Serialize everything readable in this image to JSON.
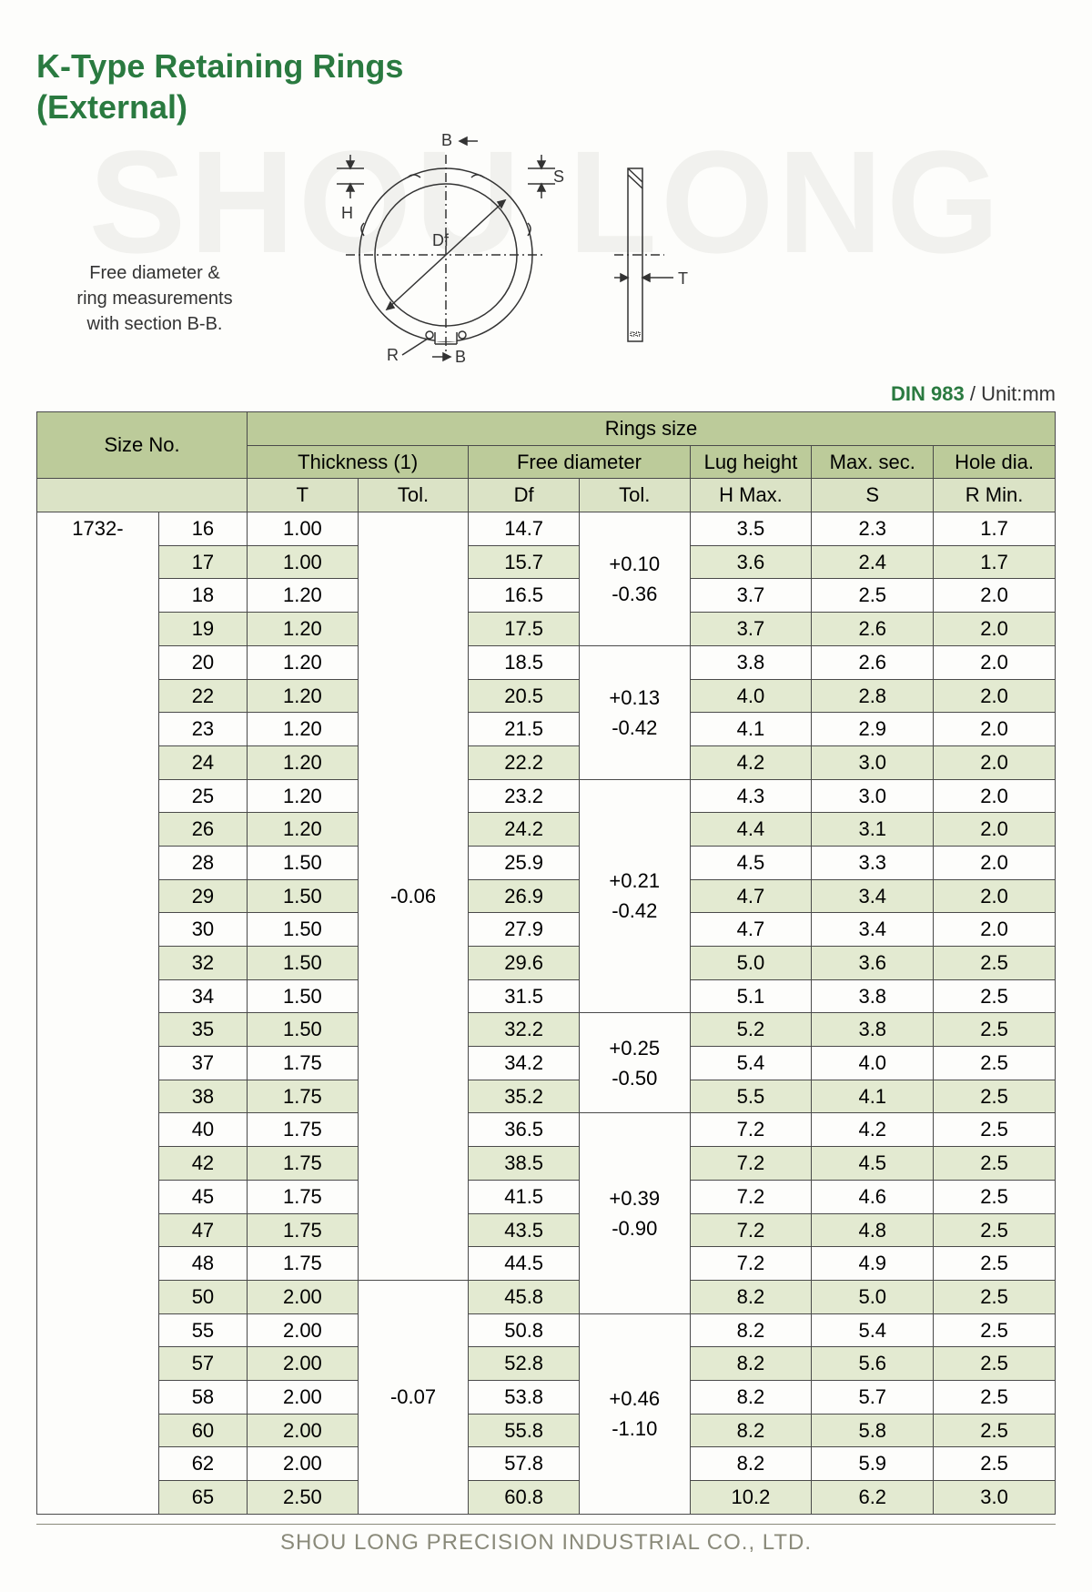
{
  "watermark": "SHOU LONG",
  "title_l1": "K-Type Retaining Rings",
  "title_l2": "(External)",
  "caption_l1": "Free diameter &",
  "caption_l2": "ring measurements",
  "caption_l3": "with section B-B.",
  "diagram_labels": {
    "B": "B",
    "S": "S",
    "H": "H",
    "Df": "Df",
    "T": "T",
    "R": "R"
  },
  "spec_standard": "DIN 983",
  "spec_unit": " / Unit:mm",
  "headers": {
    "size_no": "Size No.",
    "rings_size": "Rings size",
    "thickness": "Thickness (1)",
    "free_dia": "Free diameter",
    "lug_h": "Lug height",
    "max_sec": "Max. sec.",
    "hole_dia": "Hole dia.",
    "T": "T",
    "TolT": "Tol.",
    "Df": "Df",
    "TolD": "Tol.",
    "HMax": "H Max.",
    "S": "S",
    "RMin": "R Min."
  },
  "prefix": "1732-",
  "tol_t_1": "-0.06",
  "tol_t_2": "-0.07",
  "tol_d": [
    {
      "txt": "+0.10\n-0.36",
      "rows": 4
    },
    {
      "txt": "+0.13\n-0.42",
      "rows": 4
    },
    {
      "txt": "+0.21\n-0.42",
      "rows": 7
    },
    {
      "txt": "+0.25\n-0.50",
      "rows": 3
    },
    {
      "txt": "+0.39\n-0.90",
      "rows": 6
    },
    {
      "txt": "+0.46\n-1.10",
      "rows": 6
    }
  ],
  "rows": [
    {
      "n": "16",
      "t": "1.00",
      "df": "14.7",
      "h": "3.5",
      "s": "2.3",
      "r": "1.7"
    },
    {
      "n": "17",
      "t": "1.00",
      "df": "15.7",
      "h": "3.6",
      "s": "2.4",
      "r": "1.7"
    },
    {
      "n": "18",
      "t": "1.20",
      "df": "16.5",
      "h": "3.7",
      "s": "2.5",
      "r": "2.0"
    },
    {
      "n": "19",
      "t": "1.20",
      "df": "17.5",
      "h": "3.7",
      "s": "2.6",
      "r": "2.0"
    },
    {
      "n": "20",
      "t": "1.20",
      "df": "18.5",
      "h": "3.8",
      "s": "2.6",
      "r": "2.0"
    },
    {
      "n": "22",
      "t": "1.20",
      "df": "20.5",
      "h": "4.0",
      "s": "2.8",
      "r": "2.0"
    },
    {
      "n": "23",
      "t": "1.20",
      "df": "21.5",
      "h": "4.1",
      "s": "2.9",
      "r": "2.0"
    },
    {
      "n": "24",
      "t": "1.20",
      "df": "22.2",
      "h": "4.2",
      "s": "3.0",
      "r": "2.0"
    },
    {
      "n": "25",
      "t": "1.20",
      "df": "23.2",
      "h": "4.3",
      "s": "3.0",
      "r": "2.0"
    },
    {
      "n": "26",
      "t": "1.20",
      "df": "24.2",
      "h": "4.4",
      "s": "3.1",
      "r": "2.0"
    },
    {
      "n": "28",
      "t": "1.50",
      "df": "25.9",
      "h": "4.5",
      "s": "3.3",
      "r": "2.0"
    },
    {
      "n": "29",
      "t": "1.50",
      "df": "26.9",
      "h": "4.7",
      "s": "3.4",
      "r": "2.0"
    },
    {
      "n": "30",
      "t": "1.50",
      "df": "27.9",
      "h": "4.7",
      "s": "3.4",
      "r": "2.0"
    },
    {
      "n": "32",
      "t": "1.50",
      "df": "29.6",
      "h": "5.0",
      "s": "3.6",
      "r": "2.5"
    },
    {
      "n": "34",
      "t": "1.50",
      "df": "31.5",
      "h": "5.1",
      "s": "3.8",
      "r": "2.5"
    },
    {
      "n": "35",
      "t": "1.50",
      "df": "32.2",
      "h": "5.2",
      "s": "3.8",
      "r": "2.5"
    },
    {
      "n": "37",
      "t": "1.75",
      "df": "34.2",
      "h": "5.4",
      "s": "4.0",
      "r": "2.5"
    },
    {
      "n": "38",
      "t": "1.75",
      "df": "35.2",
      "h": "5.5",
      "s": "4.1",
      "r": "2.5"
    },
    {
      "n": "40",
      "t": "1.75",
      "df": "36.5",
      "h": "7.2",
      "s": "4.2",
      "r": "2.5"
    },
    {
      "n": "42",
      "t": "1.75",
      "df": "38.5",
      "h": "7.2",
      "s": "4.5",
      "r": "2.5"
    },
    {
      "n": "45",
      "t": "1.75",
      "df": "41.5",
      "h": "7.2",
      "s": "4.6",
      "r": "2.5"
    },
    {
      "n": "47",
      "t": "1.75",
      "df": "43.5",
      "h": "7.2",
      "s": "4.8",
      "r": "2.5"
    },
    {
      "n": "48",
      "t": "1.75",
      "df": "44.5",
      "h": "7.2",
      "s": "4.9",
      "r": "2.5"
    },
    {
      "n": "50",
      "t": "2.00",
      "df": "45.8",
      "h": "8.2",
      "s": "5.0",
      "r": "2.5"
    },
    {
      "n": "55",
      "t": "2.00",
      "df": "50.8",
      "h": "8.2",
      "s": "5.4",
      "r": "2.5"
    },
    {
      "n": "57",
      "t": "2.00",
      "df": "52.8",
      "h": "8.2",
      "s": "5.6",
      "r": "2.5"
    },
    {
      "n": "58",
      "t": "2.00",
      "df": "53.8",
      "h": "8.2",
      "s": "5.7",
      "r": "2.5"
    },
    {
      "n": "60",
      "t": "2.00",
      "df": "55.8",
      "h": "8.2",
      "s": "5.8",
      "r": "2.5"
    },
    {
      "n": "62",
      "t": "2.00",
      "df": "57.8",
      "h": "8.2",
      "s": "5.9",
      "r": "2.5"
    },
    {
      "n": "65",
      "t": "2.50",
      "df": "60.8",
      "h": "10.2",
      "s": "6.2",
      "r": "3.0"
    }
  ],
  "footer": "SHOU LONG PRECISION INDUSTRIAL CO., LTD.",
  "colors": {
    "accent": "#2a7a40",
    "head_bg": "#bccb9a",
    "stripe_bg": "#e3ead1",
    "border": "#4a4a4a"
  }
}
